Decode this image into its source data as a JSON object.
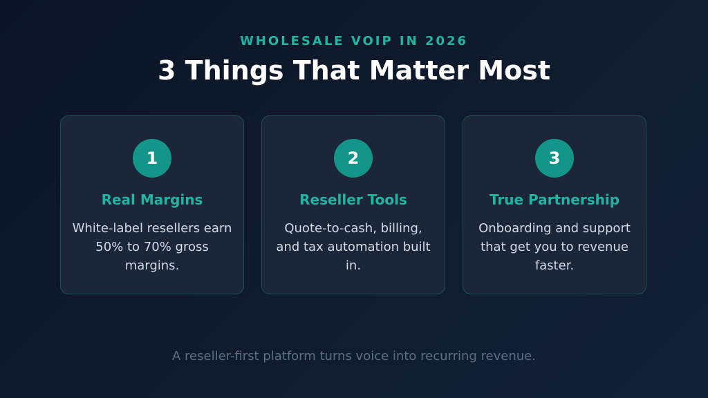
{
  "header": {
    "eyebrow": "WHOLESALE VOIP IN 2026",
    "title": "3 Things That Matter Most"
  },
  "cards": [
    {
      "number": "1",
      "title": "Real Margins",
      "body": "White-label resellers earn 50% to 70% gross margins."
    },
    {
      "number": "2",
      "title": "Reseller Tools",
      "body": "Quote-to-cash, billing, and tax automation built in."
    },
    {
      "number": "3",
      "title": "True Partnership",
      "body": "Onboarding and support that get you to revenue faster."
    }
  ],
  "footer": {
    "tagline": "A reseller-first platform turns voice into recurring revenue."
  },
  "colors": {
    "accent": "#1fb5a0",
    "badge": "#14958a",
    "background": "#0f1c2e",
    "card": "#1b2738"
  }
}
